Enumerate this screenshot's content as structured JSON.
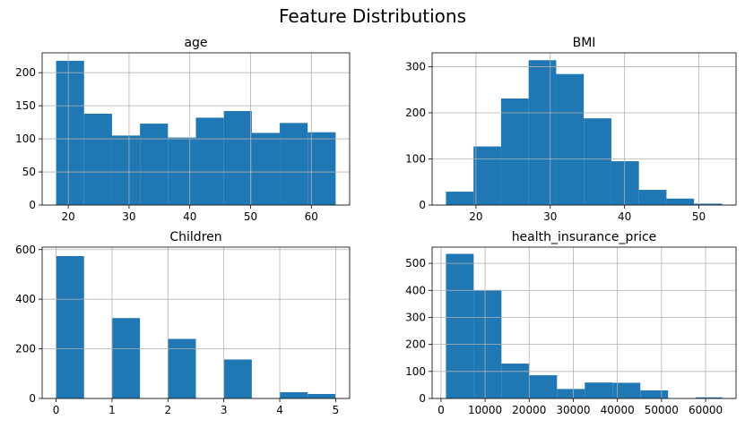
{
  "figure": {
    "suptitle": "Feature Distributions"
  },
  "colors": {
    "bar": "#1f77b4",
    "grid": "#b0b0b0",
    "axis": "#000000"
  },
  "chart_data": [
    {
      "type": "bar",
      "subtype": "histogram",
      "title": "age",
      "bin_edges": [
        18,
        22.6,
        27.2,
        31.8,
        36.4,
        41,
        45.6,
        50.2,
        54.8,
        59.4,
        64
      ],
      "values": [
        218,
        138,
        105,
        123,
        102,
        132,
        142,
        109,
        124,
        110
      ],
      "xlim": [
        15.7,
        66.3
      ],
      "ylim": [
        0,
        230
      ],
      "xticks": [
        20,
        30,
        40,
        50,
        60
      ],
      "yticks": [
        0,
        50,
        100,
        150,
        200
      ],
      "grid": true
    },
    {
      "type": "bar",
      "subtype": "histogram",
      "title": "BMI",
      "bin_edges": [
        15.96,
        19.67,
        23.38,
        27.09,
        30.8,
        34.51,
        38.22,
        41.93,
        45.64,
        49.35,
        53.13
      ],
      "values": [
        29,
        127,
        231,
        314,
        284,
        188,
        95,
        33,
        14,
        3
      ],
      "xlim": [
        14.1,
        55.0
      ],
      "ylim": [
        0,
        330
      ],
      "xticks": [
        20,
        30,
        40,
        50
      ],
      "yticks": [
        0,
        100,
        200,
        300
      ],
      "grid": true
    },
    {
      "type": "bar",
      "subtype": "histogram",
      "title": "Children",
      "bin_edges": [
        0,
        0.5,
        1,
        1.5,
        2,
        2.5,
        3,
        3.5,
        4,
        4.5,
        5
      ],
      "values": [
        574,
        0,
        324,
        0,
        240,
        0,
        157,
        0,
        25,
        18
      ],
      "xlim": [
        -0.25,
        5.25
      ],
      "ylim": [
        0,
        610
      ],
      "xticks": [
        0,
        1,
        2,
        3,
        4,
        5
      ],
      "yticks": [
        0,
        200,
        400,
        600
      ],
      "grid": true
    },
    {
      "type": "bar",
      "subtype": "histogram",
      "title": "health_insurance_price",
      "bin_edges": [
        1122,
        7418,
        13714,
        20010,
        26306,
        32602,
        38898,
        45194,
        51490,
        57786,
        63770
      ],
      "values": [
        535,
        400,
        129,
        86,
        35,
        59,
        58,
        30,
        0,
        4
      ],
      "xlim": [
        -2010,
        66900
      ],
      "ylim": [
        0,
        560
      ],
      "xticks": [
        0,
        10000,
        20000,
        30000,
        40000,
        50000,
        60000
      ],
      "yticks": [
        0,
        100,
        200,
        300,
        400,
        500
      ],
      "grid": true
    }
  ]
}
